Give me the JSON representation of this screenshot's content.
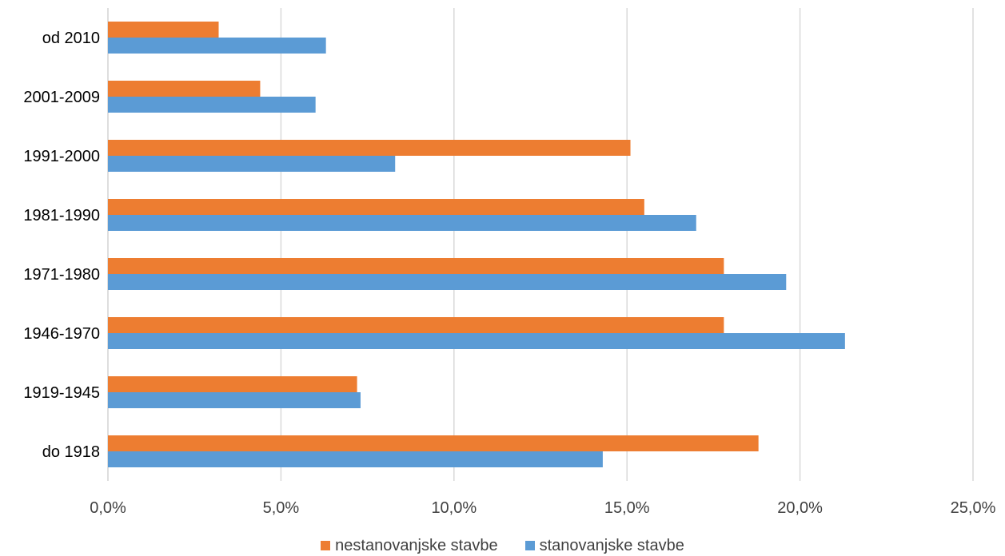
{
  "chart_data": {
    "type": "bar",
    "orientation": "horizontal",
    "categories": [
      "do 1918",
      "1919-1945",
      "1946-1970",
      "1971-1980",
      "1981-1990",
      "1991-2000",
      "2001-2009",
      "od 2010"
    ],
    "series": [
      {
        "name": "nestanovanjske stavbe",
        "color": "#ED7D31",
        "values": [
          18.8,
          7.2,
          17.8,
          17.8,
          15.5,
          15.1,
          4.4,
          3.2
        ]
      },
      {
        "name": "stanovanjske stavbe",
        "color": "#5B9BD5",
        "values": [
          14.3,
          7.3,
          21.3,
          19.6,
          17.0,
          8.3,
          6.0,
          6.3
        ]
      }
    ],
    "x_ticks": [
      "0,0%",
      "5,0%",
      "10,0%",
      "15,0%",
      "20,0%",
      "25,0%"
    ],
    "xlim": [
      0,
      25
    ],
    "grid": "vertical",
    "gridline_color": "#D9D9D9",
    "legend_position": "bottom"
  }
}
